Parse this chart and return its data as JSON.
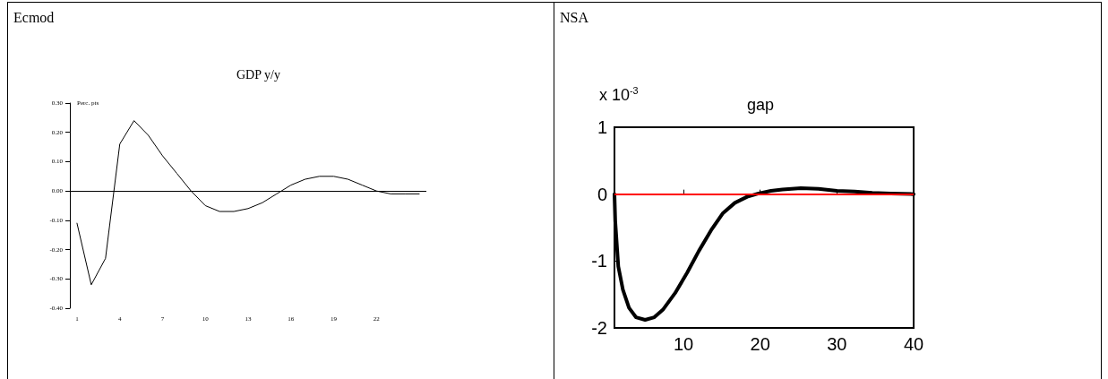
{
  "chart_data": [
    {
      "type": "line",
      "title": "GDP y/y",
      "ylabel": "Perc. pts",
      "annotations": [
        "Ecmod"
      ],
      "categories": [
        "1",
        null,
        null,
        "4",
        null,
        null,
        "7",
        null,
        null,
        "10",
        null,
        null,
        "13",
        null,
        null,
        "16",
        null,
        null,
        "19",
        null,
        null,
        "22",
        null,
        null,
        null
      ],
      "series": [
        {
          "color": "#000000",
          "values": [
            -0.11,
            -0.32,
            -0.23,
            0.16,
            0.24,
            0.19,
            0.12,
            0.06,
            0.0,
            -0.05,
            -0.07,
            -0.07,
            -0.06,
            -0.04,
            -0.01,
            0.02,
            0.04,
            0.05,
            0.05,
            0.04,
            0.02,
            0.0,
            -0.01,
            -0.01,
            -0.01
          ]
        }
      ],
      "ylim": [
        -0.4,
        0.3
      ],
      "yticks": [
        {
          "value": 0.3,
          "label": "0.30"
        },
        {
          "value": 0.2,
          "label": "0.20"
        },
        {
          "value": 0.1,
          "label": "0.10"
        },
        {
          "value": 0,
          "label": "0.00"
        },
        {
          "value": -0.1,
          "label": "-0.10"
        },
        {
          "value": -0.2,
          "label": "-0.20"
        },
        {
          "value": -0.3,
          "label": "-0.30"
        },
        {
          "value": -0.4,
          "label": "-0.40"
        }
      ],
      "ref_lines": [
        {
          "axis": "y",
          "value": 0,
          "color": "#000000"
        }
      ],
      "grid": false
    },
    {
      "type": "line",
      "title": "gap",
      "annotations": [
        "NSA",
        "x 10$^{-3}$"
      ],
      "x": [
        1,
        1.1,
        1.5,
        2.1,
        2.9,
        3.8,
        5.0,
        6.2,
        7.3,
        8.9,
        10.5,
        12.0,
        13.6,
        15.1,
        16.7,
        18.3,
        19.8,
        21.4,
        22.9,
        25.3,
        27.6,
        30.0,
        32.3,
        34.6,
        37.0,
        40
      ],
      "series": [
        {
          "color": "#000000",
          "values": [
            0,
            -0.4,
            -1.08,
            -1.43,
            -1.7,
            -1.84,
            -1.88,
            -1.84,
            -1.73,
            -1.48,
            -1.17,
            -0.85,
            -0.54,
            -0.29,
            -0.13,
            -0.04,
            0.01,
            0.05,
            0.07,
            0.09,
            0.08,
            0.05,
            0.04,
            0.02,
            0.01,
            0
          ]
        }
      ],
      "xlim": [
        1,
        40
      ],
      "xticks": [
        10,
        20,
        30,
        40
      ],
      "ylim": [
        -2,
        1
      ],
      "yticks": [
        -2,
        -1,
        0,
        1
      ],
      "ref_lines": [
        {
          "axis": "y",
          "value": 0,
          "color": "#ff0000"
        }
      ],
      "grid": false
    }
  ]
}
